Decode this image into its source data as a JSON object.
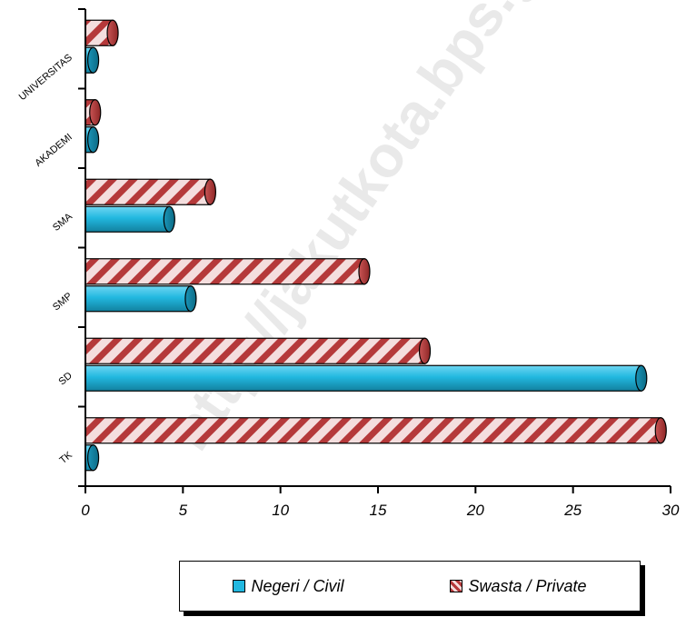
{
  "watermark": "http://jakutkota.bps.go",
  "chart_data": {
    "type": "bar",
    "orientation": "horizontal",
    "categories": [
      "TK",
      "SD",
      "SMP",
      "SMA",
      "AKADEMI",
      "UNIVERSITAS"
    ],
    "series": [
      {
        "name": "Negeri / Civil",
        "values": [
          0.4,
          28.5,
          5.4,
          4.3,
          0.4,
          0.4
        ],
        "color": "#22b8e0"
      },
      {
        "name": "Swasta / Private",
        "values": [
          29.5,
          17.4,
          14.3,
          6.4,
          0.5,
          1.4
        ],
        "color": "#c0504d"
      }
    ],
    "xticks": [
      "0",
      "5",
      "10",
      "15",
      "20",
      "25",
      "30"
    ],
    "xlim": [
      0,
      30
    ],
    "legend_position": "bottom"
  }
}
